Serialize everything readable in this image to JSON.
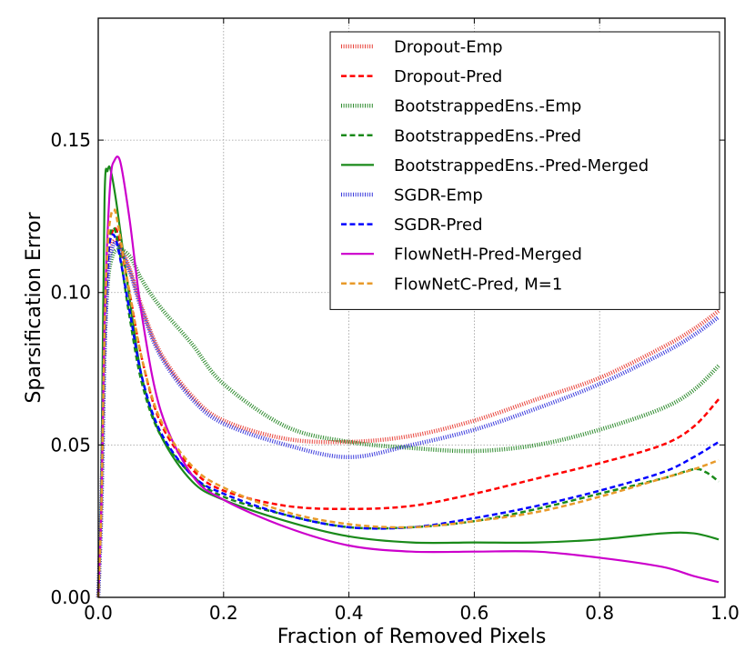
{
  "chart_data": {
    "type": "line",
    "title": "",
    "xlabel": "Fraction of  Removed Pixels",
    "ylabel": "Sparsification Error",
    "xlim": [
      0.0,
      1.0
    ],
    "ylim": [
      0.0,
      0.19
    ],
    "xticks": [
      0.0,
      0.2,
      0.4,
      0.6,
      0.8,
      1.0
    ],
    "xtick_labels": [
      "0.0",
      "0.2",
      "0.4",
      "0.6",
      "0.8",
      "1.0"
    ],
    "yticks": [
      0.0,
      0.05,
      0.1,
      0.15
    ],
    "ytick_labels": [
      "0.00",
      "0.05",
      "0.10",
      "0.15"
    ],
    "grid": true,
    "legend_position": "top-right",
    "series": [
      {
        "name": "Dropout-Emp",
        "color": "#e8423a",
        "style": "dotted-thick",
        "x": [
          0.0,
          0.005,
          0.01,
          0.015,
          0.02,
          0.03,
          0.05,
          0.07,
          0.1,
          0.15,
          0.2,
          0.3,
          0.4,
          0.5,
          0.6,
          0.7,
          0.8,
          0.9,
          0.95,
          0.99
        ],
        "y": [
          0.0,
          0.03,
          0.08,
          0.105,
          0.114,
          0.117,
          0.108,
          0.095,
          0.08,
          0.066,
          0.058,
          0.052,
          0.051,
          0.053,
          0.058,
          0.065,
          0.072,
          0.082,
          0.088,
          0.094
        ]
      },
      {
        "name": "Dropout-Pred",
        "color": "#ff0000",
        "style": "dashed",
        "x": [
          0.0,
          0.005,
          0.01,
          0.015,
          0.02,
          0.03,
          0.05,
          0.07,
          0.1,
          0.15,
          0.2,
          0.3,
          0.4,
          0.5,
          0.6,
          0.7,
          0.8,
          0.9,
          0.95,
          0.99
        ],
        "y": [
          0.0,
          0.03,
          0.08,
          0.108,
          0.118,
          0.12,
          0.1,
          0.078,
          0.057,
          0.042,
          0.035,
          0.03,
          0.029,
          0.03,
          0.034,
          0.039,
          0.044,
          0.05,
          0.056,
          0.065
        ]
      },
      {
        "name": "BootstrappedEns.-Emp",
        "color": "#2e8b2e",
        "style": "dotted-thick",
        "x": [
          0.0,
          0.005,
          0.01,
          0.015,
          0.02,
          0.03,
          0.05,
          0.07,
          0.1,
          0.15,
          0.2,
          0.3,
          0.4,
          0.5,
          0.6,
          0.7,
          0.8,
          0.9,
          0.95,
          0.99
        ],
        "y": [
          0.0,
          0.03,
          0.08,
          0.102,
          0.11,
          0.114,
          0.112,
          0.104,
          0.095,
          0.083,
          0.07,
          0.056,
          0.051,
          0.049,
          0.048,
          0.05,
          0.055,
          0.062,
          0.068,
          0.076
        ]
      },
      {
        "name": "BootstrappedEns.-Pred",
        "color": "#1a8a1a",
        "style": "dashed",
        "x": [
          0.0,
          0.005,
          0.01,
          0.015,
          0.02,
          0.03,
          0.05,
          0.07,
          0.1,
          0.15,
          0.2,
          0.3,
          0.4,
          0.5,
          0.6,
          0.7,
          0.8,
          0.9,
          0.95,
          0.97,
          0.99
        ],
        "y": [
          0.0,
          0.03,
          0.08,
          0.11,
          0.12,
          0.118,
          0.092,
          0.07,
          0.053,
          0.04,
          0.033,
          0.027,
          0.023,
          0.023,
          0.025,
          0.029,
          0.034,
          0.039,
          0.042,
          0.041,
          0.038
        ]
      },
      {
        "name": "BootstrappedEns.-Pred-Merged",
        "color": "#1a8a1a",
        "style": "solid",
        "x": [
          0.0,
          0.005,
          0.01,
          0.015,
          0.02,
          0.03,
          0.05,
          0.07,
          0.1,
          0.15,
          0.2,
          0.3,
          0.4,
          0.5,
          0.6,
          0.7,
          0.8,
          0.9,
          0.95,
          0.99
        ],
        "y": [
          0.0,
          0.04,
          0.13,
          0.14,
          0.14,
          0.128,
          0.098,
          0.072,
          0.053,
          0.038,
          0.032,
          0.025,
          0.02,
          0.018,
          0.018,
          0.018,
          0.019,
          0.021,
          0.021,
          0.019
        ]
      },
      {
        "name": "SGDR-Emp",
        "color": "#3b3bdc",
        "style": "dotted-thick",
        "x": [
          0.0,
          0.005,
          0.01,
          0.015,
          0.02,
          0.03,
          0.05,
          0.07,
          0.1,
          0.15,
          0.2,
          0.3,
          0.4,
          0.5,
          0.6,
          0.7,
          0.8,
          0.9,
          0.95,
          0.99
        ],
        "y": [
          0.0,
          0.03,
          0.08,
          0.105,
          0.113,
          0.116,
          0.107,
          0.094,
          0.079,
          0.065,
          0.057,
          0.05,
          0.046,
          0.05,
          0.055,
          0.062,
          0.07,
          0.08,
          0.086,
          0.092
        ]
      },
      {
        "name": "SGDR-Pred",
        "color": "#0000ff",
        "style": "dashed",
        "x": [
          0.0,
          0.005,
          0.01,
          0.015,
          0.02,
          0.03,
          0.05,
          0.07,
          0.1,
          0.15,
          0.2,
          0.3,
          0.4,
          0.5,
          0.6,
          0.7,
          0.8,
          0.9,
          0.95,
          0.99
        ],
        "y": [
          0.0,
          0.03,
          0.08,
          0.108,
          0.118,
          0.116,
          0.094,
          0.072,
          0.054,
          0.04,
          0.034,
          0.027,
          0.023,
          0.023,
          0.026,
          0.03,
          0.035,
          0.041,
          0.046,
          0.051
        ]
      },
      {
        "name": "FlowNetH-Pred-Merged",
        "color": "#cc00cc",
        "style": "solid",
        "x": [
          0.0,
          0.005,
          0.01,
          0.015,
          0.02,
          0.025,
          0.035,
          0.05,
          0.07,
          0.1,
          0.15,
          0.2,
          0.3,
          0.4,
          0.5,
          0.6,
          0.7,
          0.8,
          0.9,
          0.95,
          0.99
        ],
        "y": [
          0.0,
          0.03,
          0.09,
          0.12,
          0.138,
          0.143,
          0.143,
          0.124,
          0.092,
          0.061,
          0.04,
          0.032,
          0.023,
          0.017,
          0.015,
          0.015,
          0.015,
          0.013,
          0.01,
          0.007,
          0.005
        ]
      },
      {
        "name": "FlowNetC-Pred, M=1",
        "color": "#e89a2a",
        "style": "dashed",
        "x": [
          0.0,
          0.005,
          0.01,
          0.015,
          0.02,
          0.025,
          0.03,
          0.05,
          0.07,
          0.1,
          0.15,
          0.2,
          0.3,
          0.4,
          0.5,
          0.6,
          0.7,
          0.8,
          0.9,
          0.95,
          0.99
        ],
        "y": [
          0.0,
          0.03,
          0.085,
          0.115,
          0.125,
          0.127,
          0.124,
          0.1,
          0.078,
          0.058,
          0.043,
          0.036,
          0.028,
          0.024,
          0.023,
          0.025,
          0.028,
          0.033,
          0.039,
          0.042,
          0.045
        ]
      }
    ]
  }
}
